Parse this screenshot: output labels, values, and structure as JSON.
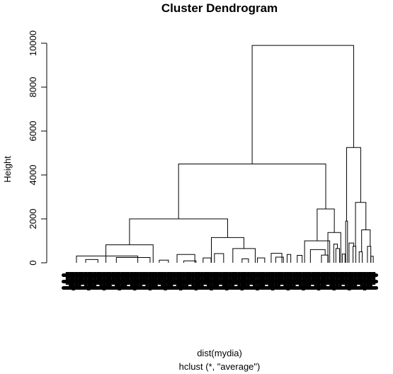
{
  "chart_data": {
    "type": "dendrogram",
    "title": "Cluster Dendrogram",
    "ylabel": "Height",
    "xlabel": "dist(mydia)",
    "sublabel": "hclust (*, \"average\")",
    "ylim": [
      0,
      10000
    ],
    "yticks": [
      0,
      2000,
      4000,
      6000,
      8000,
      10000
    ],
    "ytick_labels": [
      "0",
      "2000",
      "4000",
      "6000",
      "8000",
      "10000"
    ],
    "leaf_range": [
      0,
      100
    ],
    "merges": [
      {
        "left": 60.3,
        "right": 93.4,
        "height": 9900
      },
      {
        "left": 36.3,
        "right": 84.3,
        "height": 4500
      },
      {
        "left": 20.3,
        "right": 52.3,
        "height": 2000
      },
      {
        "left": 12.6,
        "right": 28.0,
        "height": 820
      },
      {
        "left": 47.0,
        "right": 57.6,
        "height": 1150
      },
      {
        "left": 81.5,
        "right": 87.1,
        "height": 2450
      },
      {
        "left": 77.4,
        "right": 85.6,
        "height": 1000
      },
      {
        "left": 85.0,
        "right": 89.2,
        "height": 1380
      },
      {
        "left": 91.1,
        "right": 95.7,
        "height": 5250
      },
      {
        "left": 94.0,
        "right": 97.4,
        "height": 2750
      },
      {
        "left": 90.8,
        "right": 91.4,
        "height": 1900
      },
      {
        "left": 96.0,
        "right": 98.8,
        "height": 1500
      },
      {
        "left": 54.0,
        "right": 61.3,
        "height": 650
      },
      {
        "left": 35.8,
        "right": 41.6,
        "height": 380
      },
      {
        "left": 3.0,
        "right": 23.0,
        "height": 310
      },
      {
        "left": 16.0,
        "right": 27.0,
        "height": 240
      },
      {
        "left": 6.0,
        "right": 10.0,
        "height": 150
      },
      {
        "left": 48.0,
        "right": 51.0,
        "height": 420
      },
      {
        "left": 66.5,
        "right": 70.0,
        "height": 430
      },
      {
        "left": 79.3,
        "right": 84.1,
        "height": 600
      },
      {
        "left": 82.9,
        "right": 85.1,
        "height": 350
      },
      {
        "left": 86.9,
        "right": 88.1,
        "height": 850
      },
      {
        "left": 87.6,
        "right": 88.8,
        "height": 650
      },
      {
        "left": 91.9,
        "right": 93.4,
        "height": 900
      },
      {
        "left": 97.9,
        "right": 99.0,
        "height": 750
      },
      {
        "left": 93.2,
        "right": 94.1,
        "height": 750
      },
      {
        "left": 71.7,
        "right": 72.9,
        "height": 380
      },
      {
        "left": 75.0,
        "right": 76.6,
        "height": 340
      },
      {
        "left": 44.3,
        "right": 46.9,
        "height": 220
      },
      {
        "left": 57.0,
        "right": 59.1,
        "height": 180
      },
      {
        "left": 62.0,
        "right": 64.4,
        "height": 220
      },
      {
        "left": 30.0,
        "right": 33.0,
        "height": 120
      },
      {
        "left": 38.0,
        "right": 42.0,
        "height": 90
      },
      {
        "left": 68.0,
        "right": 70.5,
        "height": 260
      },
      {
        "left": 95.2,
        "right": 96.2,
        "height": 500
      },
      {
        "left": 89.7,
        "right": 90.6,
        "height": 400
      },
      {
        "left": 99.0,
        "right": 99.8,
        "height": 300
      }
    ]
  }
}
